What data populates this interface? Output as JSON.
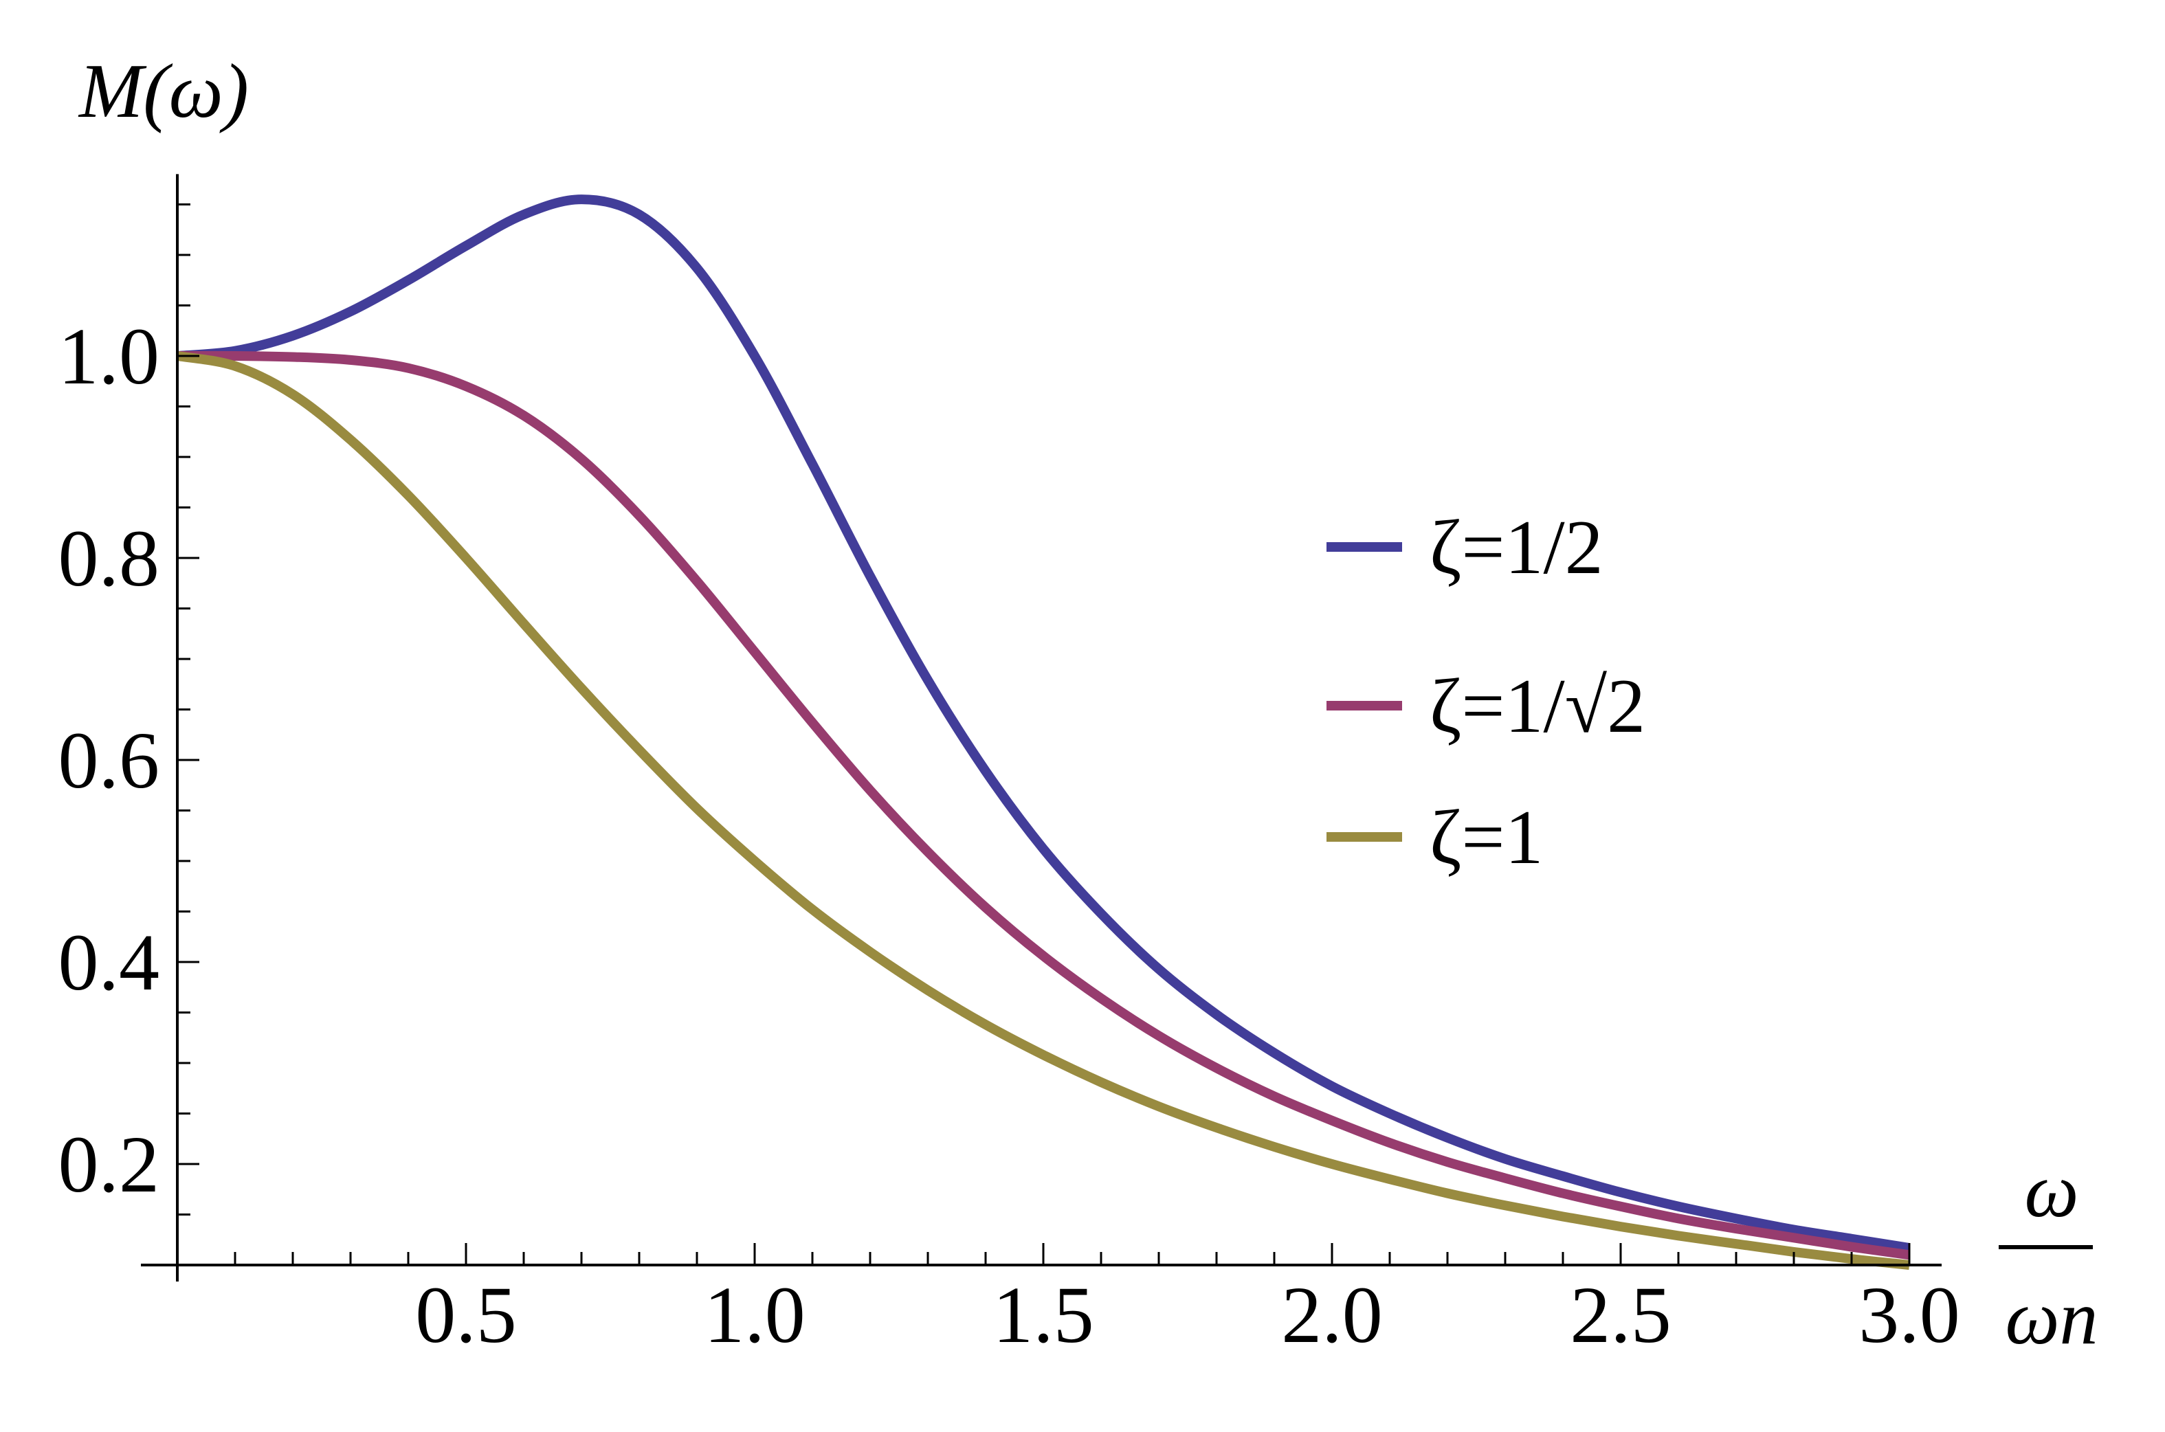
{
  "chart_data": {
    "type": "line",
    "title": "",
    "ylabel": "M(ω)",
    "xlabel_numerator": "ω",
    "xlabel_denominator": "ωn",
    "xlim": [
      0,
      3.0
    ],
    "ylim": [
      0.1,
      1.18
    ],
    "grid": false,
    "legend_position": "right",
    "x_ticks": [
      "0.5",
      "1.0",
      "1.5",
      "2.0",
      "2.5",
      "3.0"
    ],
    "y_ticks": [
      "0.2",
      "0.4",
      "0.6",
      "0.8",
      "1.0"
    ],
    "x": [
      0,
      0.1,
      0.2,
      0.3,
      0.4,
      0.5,
      0.6,
      0.7,
      0.8,
      0.9,
      1.0,
      1.1,
      1.2,
      1.3,
      1.4,
      1.5,
      1.6,
      1.7,
      1.8,
      1.9,
      2.0,
      2.1,
      2.2,
      2.3,
      2.4,
      2.5,
      2.6,
      2.7,
      2.8,
      2.9,
      3.0
    ],
    "series": [
      {
        "name": "ζ=1/2",
        "color": "#423d99",
        "values": [
          1.0,
          1.005,
          1.02,
          1.044,
          1.075,
          1.109,
          1.14,
          1.155,
          1.14,
          1.087,
          1.0,
          0.893,
          0.782,
          0.679,
          0.589,
          0.512,
          0.448,
          0.393,
          0.348,
          0.31,
          0.277,
          0.25,
          0.226,
          0.205,
          0.188,
          0.172,
          0.158,
          0.146,
          0.135,
          0.126,
          0.117
        ]
      },
      {
        "name": "ζ=1/√2",
        "color": "#973c6e",
        "values": [
          1.0,
          1.0,
          0.999,
          0.996,
          0.988,
          0.97,
          0.941,
          0.898,
          0.842,
          0.777,
          0.707,
          0.637,
          0.57,
          0.509,
          0.454,
          0.406,
          0.364,
          0.327,
          0.295,
          0.267,
          0.243,
          0.221,
          0.202,
          0.186,
          0.171,
          0.158,
          0.146,
          0.136,
          0.127,
          0.118,
          0.11
        ]
      },
      {
        "name": "ζ=1",
        "color": "#998b40",
        "values": [
          1.0,
          0.99,
          0.962,
          0.917,
          0.862,
          0.8,
          0.735,
          0.671,
          0.61,
          0.552,
          0.5,
          0.452,
          0.41,
          0.372,
          0.338,
          0.308,
          0.281,
          0.257,
          0.236,
          0.217,
          0.2,
          0.185,
          0.171,
          0.159,
          0.148,
          0.138,
          0.129,
          0.121,
          0.113,
          0.106,
          0.1
        ]
      }
    ]
  }
}
